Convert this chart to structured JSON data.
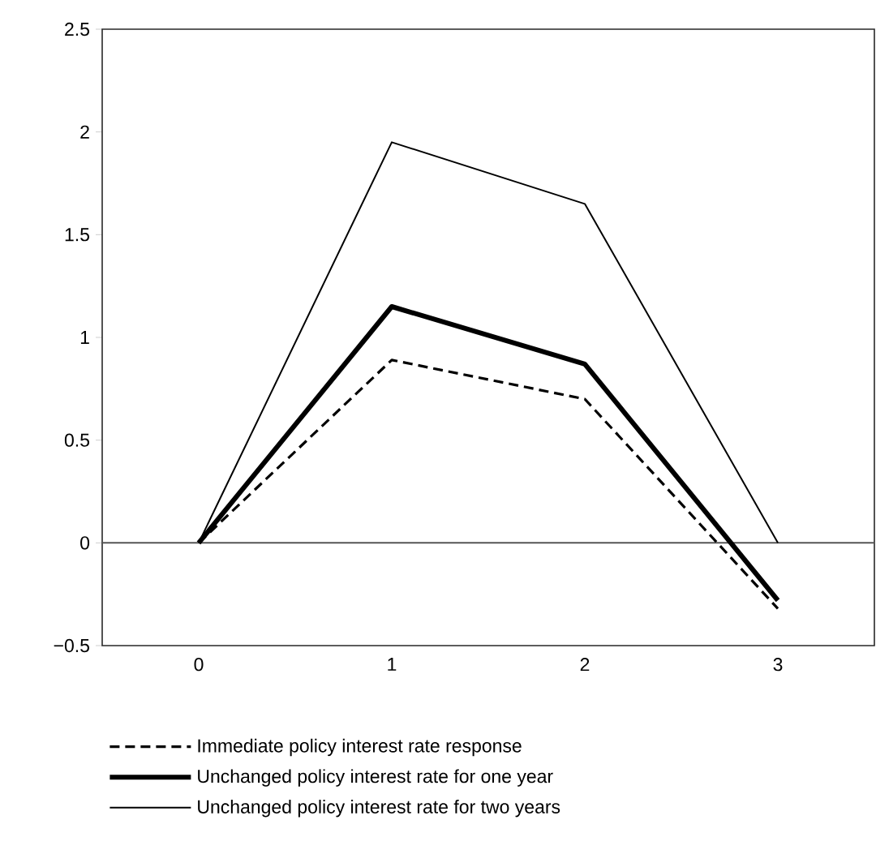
{
  "chart_data": {
    "type": "line",
    "categories": [
      "0",
      "1",
      "2",
      "3"
    ],
    "series": [
      {
        "name": "Immediate policy interest rate response",
        "color": "#000000",
        "line_style": "dashed",
        "values": [
          0,
          0.89,
          0.7,
          -0.32
        ]
      },
      {
        "name": "Unchanged policy interest rate for one year",
        "color": "#000000",
        "line_style": "solid",
        "values": [
          0,
          1.15,
          0.87,
          -0.28
        ]
      },
      {
        "name": "Unchanged policy interest rate for two years",
        "color": "#000000",
        "line_style": "solid",
        "values": [
          0,
          1.95,
          1.65,
          0
        ]
      }
    ],
    "ylim": [
      -0.5,
      2.5
    ],
    "yticks": [
      {
        "value": -0.5,
        "label": "−0.5"
      },
      0,
      0.5,
      1,
      1.5,
      2,
      2.5
    ],
    "ref_lines": [
      {
        "axis": "y",
        "value": 0,
        "color": "#555555"
      }
    ],
    "grid": false,
    "legend": "bottom",
    "marker": "none"
  }
}
